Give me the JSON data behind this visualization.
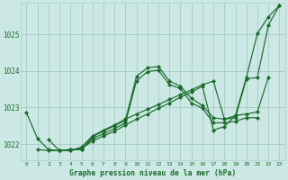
{
  "xlabel": "Graphe pression niveau de la mer (hPa)",
  "bg_color": "#cce8e4",
  "grid_color": "#aacfcb",
  "line_color": "#1a6b2a",
  "ylim": [
    1021.55,
    1025.85
  ],
  "xlim": [
    -0.5,
    23.5
  ],
  "yticks": [
    1022,
    1023,
    1024,
    1025
  ],
  "xticks": [
    0,
    1,
    2,
    3,
    4,
    5,
    6,
    7,
    8,
    9,
    10,
    11,
    12,
    13,
    14,
    15,
    16,
    17,
    18,
    19,
    20,
    21,
    22,
    23
  ],
  "xtick_labels": [
    "0",
    "1",
    "2",
    "3",
    "4",
    "5",
    "6",
    "7",
    "8",
    "9",
    "10",
    "11",
    "12",
    "13",
    "14",
    "15",
    "16",
    "17",
    "18",
    "19",
    "20",
    "21",
    "22",
    "23"
  ],
  "series": [
    {
      "x": [
        0,
        1,
        2,
        3,
        4,
        5,
        6,
        7,
        8,
        9,
        10,
        11,
        12,
        13,
        14,
        15,
        16,
        17,
        18,
        19,
        20,
        21,
        22,
        23
      ],
      "y": [
        1022.85,
        1022.15,
        1021.85,
        1021.82,
        1021.85,
        1021.85,
        1022.2,
        1022.35,
        1022.5,
        1022.65,
        1023.85,
        1024.08,
        1024.12,
        1023.72,
        1023.58,
        1023.25,
        1023.05,
        1022.72,
        1022.68,
        1022.72,
        1023.78,
        1023.82,
        1025.25,
        1025.78
      ]
    },
    {
      "x": [
        1,
        2,
        3,
        4,
        5,
        6,
        7,
        8,
        9,
        10,
        11,
        12,
        13,
        14,
        15,
        16,
        17,
        18,
        19,
        20,
        21
      ],
      "y": [
        1021.85,
        1021.82,
        1021.82,
        1021.85,
        1021.85,
        1022.15,
        1022.28,
        1022.42,
        1022.58,
        1023.72,
        1023.98,
        1024.02,
        1023.62,
        1023.52,
        1023.12,
        1022.98,
        1022.58,
        1022.58,
        1022.62,
        1022.72,
        1022.72
      ]
    },
    {
      "x": [
        2,
        3,
        4,
        5,
        6,
        7,
        8,
        9,
        10,
        11,
        12,
        13,
        14,
        15,
        16,
        17,
        18,
        19,
        20,
        21,
        22
      ],
      "y": [
        1022.12,
        1021.82,
        1021.82,
        1021.92,
        1022.22,
        1022.38,
        1022.52,
        1022.68,
        1022.82,
        1022.95,
        1023.08,
        1023.22,
        1023.35,
        1023.48,
        1023.62,
        1023.72,
        1022.68,
        1022.78,
        1022.82,
        1022.88,
        1023.82
      ]
    },
    {
      "x": [
        3,
        4,
        5,
        6,
        7,
        8,
        9,
        10,
        11,
        12,
        13,
        14,
        15,
        16,
        17,
        18,
        19,
        20,
        21,
        22,
        23
      ],
      "y": [
        1021.82,
        1021.82,
        1021.88,
        1022.08,
        1022.22,
        1022.35,
        1022.52,
        1022.68,
        1022.82,
        1022.98,
        1023.12,
        1023.28,
        1023.42,
        1023.58,
        1022.38,
        1022.48,
        1022.78,
        1023.82,
        1025.02,
        1025.48,
        1025.78
      ]
    }
  ]
}
